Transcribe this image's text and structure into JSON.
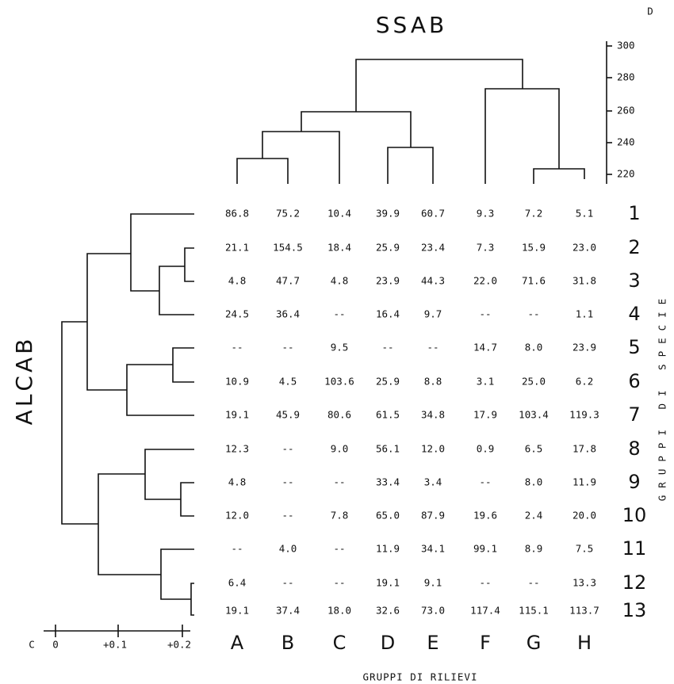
{
  "title": "SSAB",
  "row_axis_title": "ALCAB",
  "right_label": "GRUPPI DI SPECIE",
  "bottom_label": "GRUPPI DI RILIEVI",
  "top_scale": {
    "label": "D",
    "ticks": [
      "300",
      "280",
      "260",
      "240",
      "220"
    ]
  },
  "left_scale": {
    "label": "C",
    "ticks": [
      "0",
      "+0.1",
      "+0.2"
    ]
  },
  "table": {
    "columns": [
      "A",
      "B",
      "C",
      "D",
      "E",
      "F",
      "G",
      "H"
    ],
    "rows": [
      {
        "label": "1",
        "values": [
          "86.8",
          "75.2",
          "10.4",
          "39.9",
          "60.7",
          "9.3",
          "7.2",
          "5.1"
        ]
      },
      {
        "label": "2",
        "values": [
          "21.1",
          "154.5",
          "18.4",
          "25.9",
          "23.4",
          "7.3",
          "15.9",
          "23.0"
        ]
      },
      {
        "label": "3",
        "values": [
          "4.8",
          "47.7",
          "4.8",
          "23.9",
          "44.3",
          "22.0",
          "71.6",
          "31.8"
        ]
      },
      {
        "label": "4",
        "values": [
          "24.5",
          "36.4",
          "--",
          "16.4",
          "9.7",
          "--",
          "--",
          "1.1"
        ]
      },
      {
        "label": "5",
        "values": [
          "--",
          "--",
          "9.5",
          "--",
          "--",
          "14.7",
          "8.0",
          "23.9"
        ]
      },
      {
        "label": "6",
        "values": [
          "10.9",
          "4.5",
          "103.6",
          "25.9",
          "8.8",
          "3.1",
          "25.0",
          "6.2"
        ]
      },
      {
        "label": "7",
        "values": [
          "19.1",
          "45.9",
          "80.6",
          "61.5",
          "34.8",
          "17.9",
          "103.4",
          "119.3"
        ]
      },
      {
        "label": "8",
        "values": [
          "12.3",
          "--",
          "9.0",
          "56.1",
          "12.0",
          "0.9",
          "6.5",
          "17.8"
        ]
      },
      {
        "label": "9",
        "values": [
          "4.8",
          "--",
          "--",
          "33.4",
          "3.4",
          "--",
          "8.0",
          "11.9"
        ]
      },
      {
        "label": "10",
        "values": [
          "12.0",
          "--",
          "7.8",
          "65.0",
          "87.9",
          "19.6",
          "2.4",
          "20.0"
        ]
      },
      {
        "label": "11",
        "values": [
          "--",
          "4.0",
          "--",
          "11.9",
          "34.1",
          "99.1",
          "8.9",
          "7.5"
        ]
      },
      {
        "label": "12",
        "values": [
          "6.4",
          "--",
          "--",
          "19.1",
          "9.1",
          "--",
          "--",
          "13.3"
        ]
      },
      {
        "label": "13",
        "values": [
          "19.1",
          "37.4",
          "18.0",
          "32.6",
          "73.0",
          "117.4",
          "115.1",
          "113.7"
        ]
      }
    ]
  }
}
